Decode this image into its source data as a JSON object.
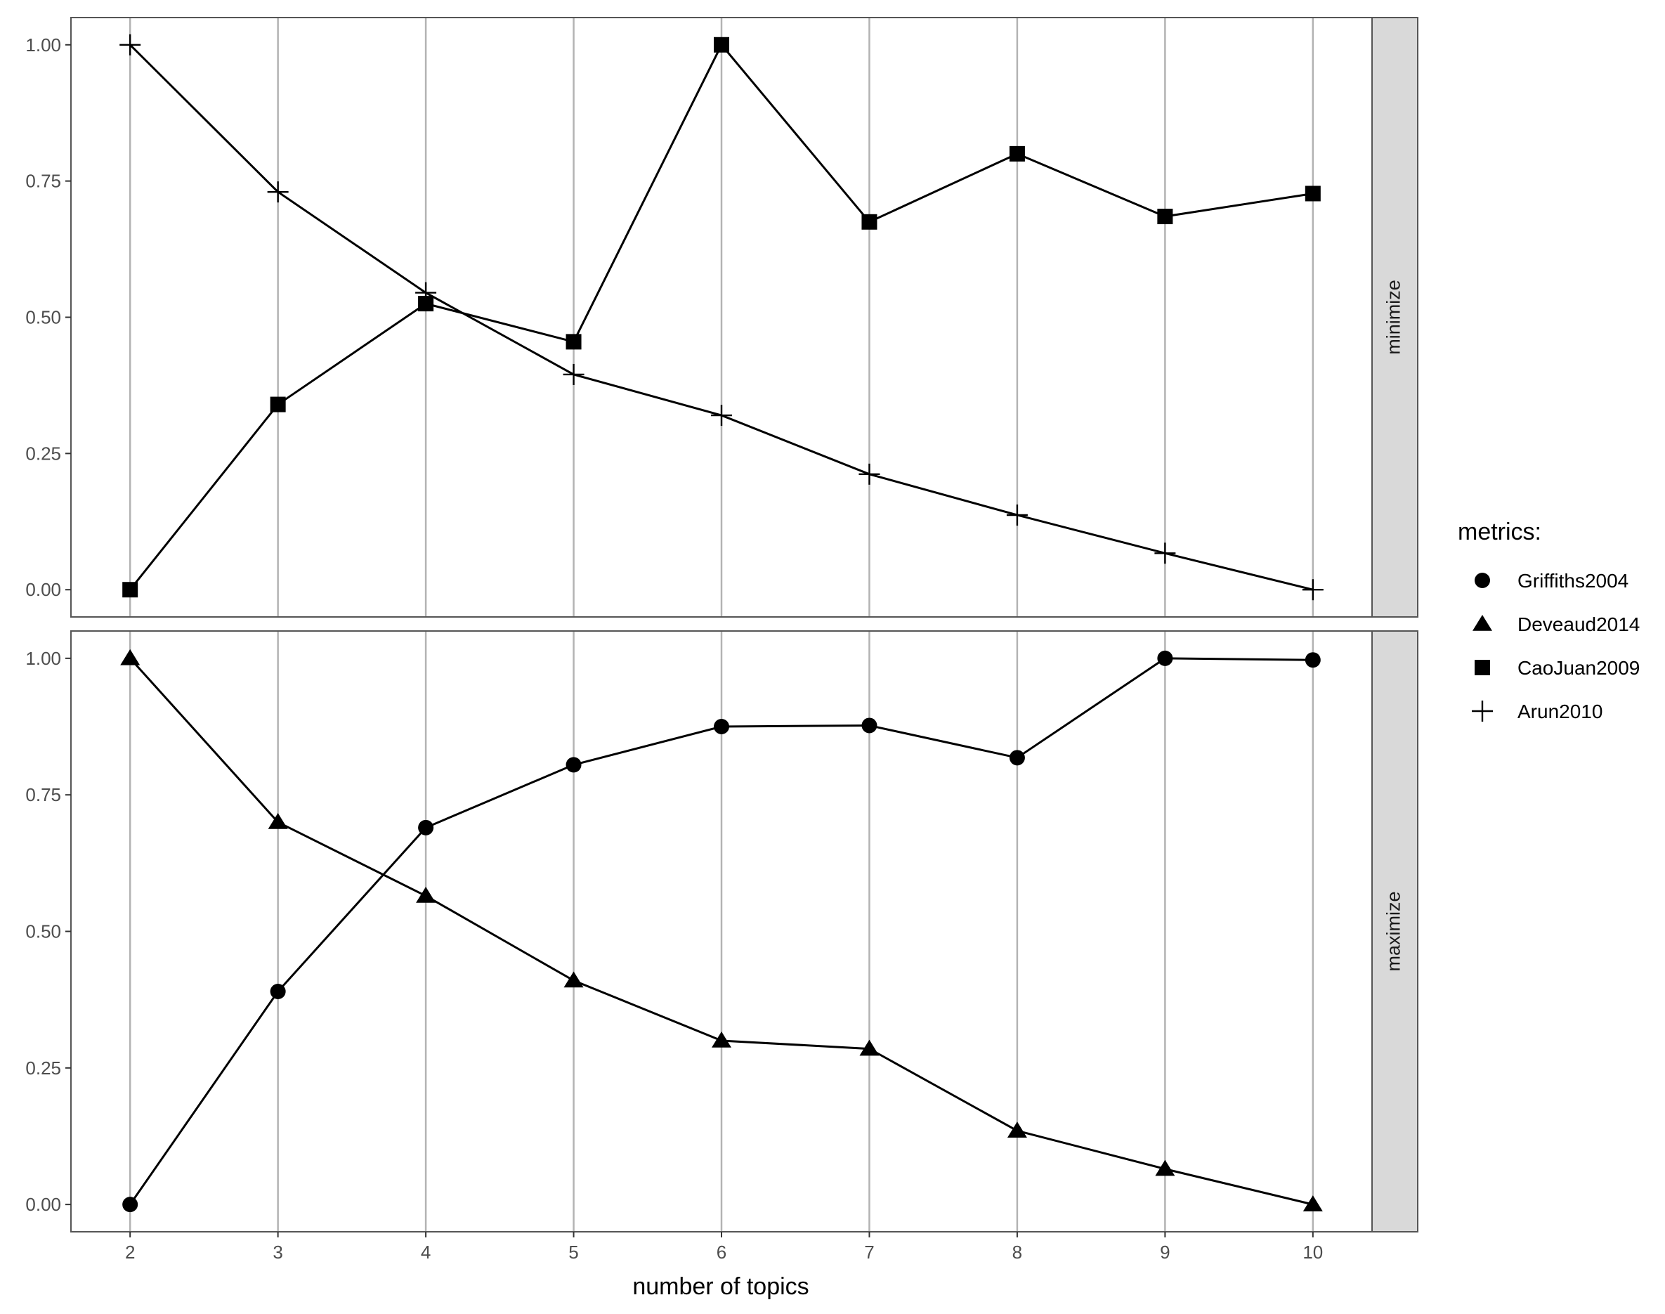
{
  "chart_data": {
    "type": "line",
    "xlabel": "number of topics",
    "x": [
      2,
      3,
      4,
      5,
      6,
      7,
      8,
      9,
      10
    ],
    "xticks": [
      "2",
      "3",
      "4",
      "5",
      "6",
      "7",
      "8",
      "9",
      "10"
    ],
    "yticks": [
      "0.00",
      "0.25",
      "0.50",
      "0.75",
      "1.00"
    ],
    "ylim": [
      -0.05,
      1.05
    ],
    "grid": "vertical",
    "legend": {
      "title": "metrics:",
      "placement": "right",
      "entries": [
        {
          "label": "Griffiths2004",
          "marker": "circle"
        },
        {
          "label": "Deveaud2014",
          "marker": "triangle"
        },
        {
          "label": "CaoJuan2009",
          "marker": "square"
        },
        {
          "label": "Arun2010",
          "marker": "plus"
        }
      ]
    },
    "panels": [
      {
        "strip": "minimize",
        "series": [
          {
            "name": "CaoJuan2009",
            "marker": "square",
            "values": [
              0.0,
              0.34,
              0.525,
              0.455,
              1.0,
              0.675,
              0.8,
              0.685,
              0.727
            ]
          },
          {
            "name": "Arun2010",
            "marker": "plus",
            "values": [
              1.0,
              0.73,
              0.545,
              0.395,
              0.32,
              0.212,
              0.137,
              0.067,
              0.0
            ]
          }
        ]
      },
      {
        "strip": "maximize",
        "series": [
          {
            "name": "Griffiths2004",
            "marker": "circle",
            "values": [
              0.0,
              0.39,
              0.69,
              0.805,
              0.875,
              0.877,
              0.818,
              1.0,
              0.997
            ]
          },
          {
            "name": "Deveaud2014",
            "marker": "triangle",
            "values": [
              1.0,
              0.7,
              0.565,
              0.41,
              0.3,
              0.285,
              0.135,
              0.065,
              0.0
            ]
          }
        ]
      }
    ],
    "colors": {
      "line": "#000000",
      "grid": "#b3b3b3",
      "strip_fill": "#d9d9d9",
      "frame": "#555555"
    }
  }
}
